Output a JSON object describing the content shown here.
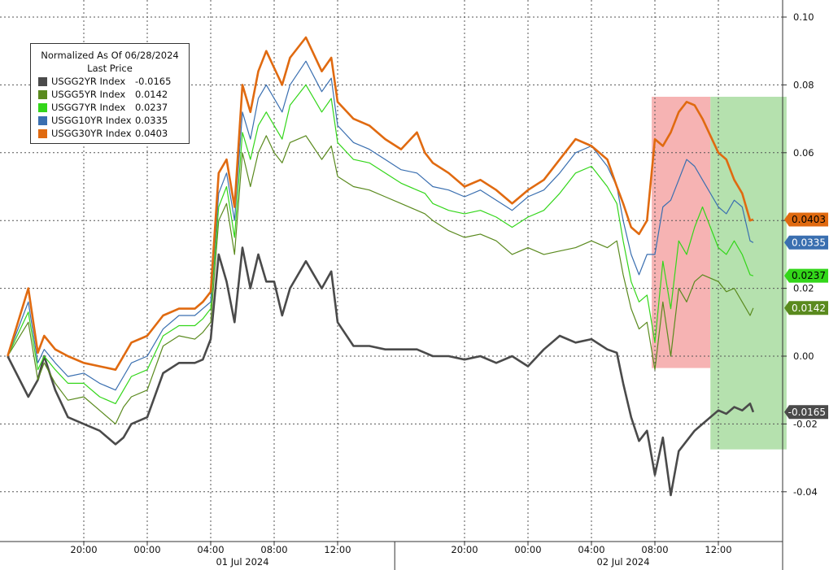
{
  "chart_data": {
    "type": "line",
    "title": "",
    "legend": {
      "title": "Normalized As Of 06/28/2024",
      "subtitle": "Last Price",
      "placement": "top-left"
    },
    "ylim": [
      -0.05,
      0.1
    ],
    "y_ticks": [
      "0.10",
      "0.08",
      "0.06",
      "0.04",
      "0.02",
      "0.00",
      "-0.02",
      "-0.04"
    ],
    "y_tick_values": [
      0.1,
      0.08,
      0.06,
      0.04,
      0.02,
      0.0,
      -0.02,
      -0.04
    ],
    "x_ticks": [
      "20:00",
      "00:00",
      "04:00",
      "08:00",
      "12:00",
      "20:00",
      "00:00",
      "04:00",
      "08:00",
      "12:00"
    ],
    "x_tick_hours": [
      20,
      24,
      28,
      32,
      36,
      44,
      48,
      52,
      56,
      60
    ],
    "x_date_labels": [
      {
        "label": "01 Jul 2024",
        "hour": 30
      },
      {
        "label": "02 Jul 2024",
        "hour": 54
      }
    ],
    "x_separator_hour": 39.6,
    "x_range_hours": [
      15.2,
      63.5
    ],
    "grid": true,
    "x": [
      15.2,
      16.5,
      17.1,
      17.5,
      18.2,
      19.0,
      20.0,
      21.0,
      22.0,
      22.5,
      23.0,
      24.0,
      25.0,
      26.0,
      27.0,
      27.5,
      28.0,
      28.5,
      29.0,
      29.5,
      30.0,
      30.5,
      31.0,
      31.5,
      32.0,
      32.5,
      33.0,
      34.0,
      35.0,
      35.6,
      36.0,
      37.0,
      38.0,
      39.0,
      40.0,
      41.0,
      41.5,
      42.0,
      43.0,
      44.0,
      45.0,
      46.0,
      47.0,
      48.0,
      49.0,
      50.0,
      51.0,
      52.0,
      53.0,
      53.6,
      54.0,
      54.5,
      55.0,
      55.5,
      56.0,
      56.5,
      57.0,
      57.5,
      58.0,
      58.5,
      59.0,
      60.0,
      60.5,
      61.0,
      61.5,
      62.0,
      62.2
    ],
    "series": [
      {
        "name": "USGG2YR Index",
        "last": "-0.0165",
        "color": "#4a4a4a",
        "values": [
          0.0,
          -0.012,
          -0.007,
          0.0,
          -0.01,
          -0.018,
          -0.02,
          -0.022,
          -0.026,
          -0.024,
          -0.02,
          -0.018,
          -0.005,
          -0.002,
          -0.002,
          -0.001,
          0.005,
          0.03,
          0.022,
          0.01,
          0.032,
          0.02,
          0.03,
          0.022,
          0.022,
          0.012,
          0.02,
          0.028,
          0.02,
          0.025,
          0.01,
          0.003,
          0.003,
          0.002,
          0.002,
          0.002,
          0.001,
          0.0,
          0.0,
          -0.001,
          0.0,
          -0.002,
          0.0,
          -0.003,
          0.002,
          0.006,
          0.004,
          0.005,
          0.002,
          0.001,
          -0.008,
          -0.018,
          -0.025,
          -0.022,
          -0.035,
          -0.024,
          -0.041,
          -0.028,
          -0.025,
          -0.022,
          -0.02,
          -0.016,
          -0.017,
          -0.015,
          -0.016,
          -0.014,
          -0.0165
        ]
      },
      {
        "name": "USGG5YR Index",
        "last": "0.0142",
        "color": "#5a8a1e",
        "values": [
          0.0,
          0.01,
          -0.007,
          -0.002,
          -0.008,
          -0.013,
          -0.012,
          -0.016,
          -0.02,
          -0.015,
          -0.012,
          -0.01,
          0.003,
          0.006,
          0.005,
          0.007,
          0.01,
          0.04,
          0.045,
          0.03,
          0.06,
          0.05,
          0.06,
          0.065,
          0.06,
          0.057,
          0.063,
          0.065,
          0.058,
          0.062,
          0.053,
          0.05,
          0.049,
          0.047,
          0.045,
          0.043,
          0.042,
          0.04,
          0.037,
          0.035,
          0.036,
          0.034,
          0.03,
          0.032,
          0.03,
          0.031,
          0.032,
          0.034,
          0.032,
          0.034,
          0.024,
          0.014,
          0.008,
          0.01,
          -0.004,
          0.016,
          0.0,
          0.02,
          0.016,
          0.022,
          0.024,
          0.022,
          0.019,
          0.02,
          0.016,
          0.012,
          0.0142
        ]
      },
      {
        "name": "USGG7YR Index",
        "last": "0.0237",
        "color": "#33d61a",
        "values": [
          0.0,
          0.013,
          -0.004,
          0.0,
          -0.004,
          -0.008,
          -0.008,
          -0.012,
          -0.014,
          -0.01,
          -0.006,
          -0.004,
          0.006,
          0.009,
          0.009,
          0.011,
          0.014,
          0.044,
          0.05,
          0.035,
          0.066,
          0.058,
          0.068,
          0.072,
          0.068,
          0.064,
          0.074,
          0.08,
          0.072,
          0.076,
          0.063,
          0.058,
          0.057,
          0.054,
          0.051,
          0.049,
          0.048,
          0.045,
          0.043,
          0.042,
          0.043,
          0.041,
          0.038,
          0.041,
          0.043,
          0.048,
          0.054,
          0.056,
          0.05,
          0.045,
          0.034,
          0.022,
          0.016,
          0.018,
          0.004,
          0.028,
          0.014,
          0.034,
          0.03,
          0.038,
          0.044,
          0.032,
          0.03,
          0.034,
          0.03,
          0.024,
          0.0237
        ]
      },
      {
        "name": "USGG10YR Index",
        "last": "0.0335",
        "color": "#3a6fb0",
        "values": [
          0.0,
          0.016,
          -0.002,
          0.002,
          -0.002,
          -0.006,
          -0.005,
          -0.008,
          -0.01,
          -0.006,
          -0.002,
          0.0,
          0.008,
          0.012,
          0.012,
          0.014,
          0.016,
          0.048,
          0.054,
          0.04,
          0.072,
          0.064,
          0.076,
          0.08,
          0.076,
          0.072,
          0.08,
          0.087,
          0.078,
          0.082,
          0.068,
          0.063,
          0.061,
          0.058,
          0.055,
          0.054,
          0.052,
          0.05,
          0.049,
          0.047,
          0.049,
          0.046,
          0.043,
          0.047,
          0.049,
          0.054,
          0.06,
          0.062,
          0.056,
          0.05,
          0.04,
          0.03,
          0.024,
          0.03,
          0.03,
          0.044,
          0.046,
          0.052,
          0.058,
          0.056,
          0.052,
          0.044,
          0.042,
          0.046,
          0.044,
          0.034,
          0.0335
        ]
      },
      {
        "name": "USGG30YR Index",
        "last": "0.0403",
        "color": "#e06a10",
        "values": [
          0.0,
          0.02,
          0.001,
          0.006,
          0.002,
          0.0,
          -0.002,
          -0.003,
          -0.004,
          0.0,
          0.004,
          0.006,
          0.012,
          0.014,
          0.014,
          0.016,
          0.019,
          0.054,
          0.058,
          0.044,
          0.08,
          0.072,
          0.084,
          0.09,
          0.085,
          0.08,
          0.088,
          0.094,
          0.084,
          0.088,
          0.075,
          0.07,
          0.068,
          0.064,
          0.061,
          0.066,
          0.06,
          0.057,
          0.054,
          0.05,
          0.052,
          0.049,
          0.045,
          0.049,
          0.052,
          0.058,
          0.064,
          0.062,
          0.058,
          0.05,
          0.045,
          0.038,
          0.036,
          0.04,
          0.064,
          0.062,
          0.066,
          0.072,
          0.075,
          0.074,
          0.07,
          0.06,
          0.058,
          0.052,
          0.048,
          0.04,
          0.0403
        ]
      }
    ],
    "highlight_regions": [
      {
        "color": "#f4a6a6",
        "x": [
          55.8,
          59.5
        ],
        "y": [
          -0.0035,
          0.0765
        ]
      },
      {
        "color": "#a8dca0",
        "x": [
          59.5,
          64.3
        ],
        "y": [
          -0.0275,
          0.0765
        ]
      }
    ],
    "value_tags": [
      {
        "text": "0.0403",
        "value": 0.0403,
        "bg": "#e06a10",
        "fg": "#000000"
      },
      {
        "text": "0.0335",
        "value": 0.0335,
        "bg": "#3a6fb0",
        "fg": "#ffffff"
      },
      {
        "text": "0.0237",
        "value": 0.0237,
        "bg": "#33d61a",
        "fg": "#000000"
      },
      {
        "text": "0.0142",
        "value": 0.0142,
        "bg": "#5a8a1e",
        "fg": "#ffffff"
      },
      {
        "text": "-0.0165",
        "value": -0.0165,
        "bg": "#4a4a4a",
        "fg": "#ffffff"
      }
    ]
  }
}
